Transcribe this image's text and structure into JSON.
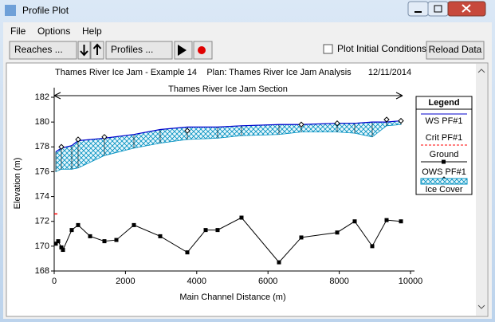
{
  "window": {
    "title": "Profile Plot"
  },
  "menu": [
    "File",
    "Options",
    "Help"
  ],
  "toolbar": {
    "reaches": "Reaches ...",
    "profiles": "Profiles ...",
    "checkbox": "Plot Initial Conditions",
    "reload": "Reload Data"
  },
  "chart_data": {
    "type": "profile",
    "header": [
      "Thames River Ice Jam - Example 14",
      "Plan: Thames River Ice Jam Analysis",
      "12/11/2014"
    ],
    "title": "Thames River Ice Jam Section",
    "x_label": "Main Channel Distance (m)",
    "y_label": "Elevation (m)",
    "legend_title": "Legend",
    "xlim": [
      0,
      10000
    ],
    "xticks": [
      0,
      2000,
      4000,
      6000,
      8000,
      10000
    ],
    "ylim": [
      168,
      182
    ],
    "yticks": [
      168,
      170,
      172,
      174,
      176,
      178,
      180,
      182
    ],
    "series": [
      {
        "name": "WS PF#1",
        "color": "#0000cc",
        "x": [
          45,
          201,
          492,
          671,
          1409,
          2237,
          2975,
          3736,
          4586,
          5257,
          6309,
          6935,
          7942,
          8434,
          8926,
          9329,
          9732
        ],
        "values": [
          177.6,
          177.9,
          178.1,
          178.5,
          178.7,
          179.0,
          179.4,
          179.6,
          179.6,
          179.7,
          179.8,
          179.8,
          179.9,
          179.9,
          180.0,
          180.0,
          180.1
        ]
      },
      {
        "name": "Crit PF#1",
        "color": "#ff0000",
        "x": [
          0
        ],
        "values": [
          172.6
        ]
      },
      {
        "name": "Ground",
        "color": "#000000",
        "x": [
          45,
          112,
          201,
          246,
          492,
          671,
          1007,
          1409,
          1745,
          2237,
          2975,
          3736,
          4251,
          4586,
          5257,
          6309,
          6935,
          7942,
          8434,
          8926,
          9329,
          9732
        ],
        "values": [
          170.2,
          170.4,
          169.9,
          169.7,
          171.3,
          171.7,
          170.8,
          170.4,
          170.5,
          171.7,
          170.8,
          169.5,
          171.3,
          171.3,
          172.3,
          168.7,
          170.7,
          171.1,
          172.0,
          170.0,
          172.1,
          172.0
        ]
      },
      {
        "name": "OWS PF#1",
        "color": "#000000",
        "x": [
          201,
          671,
          1409,
          3736,
          6935,
          7942,
          9329,
          9732
        ],
        "values": [
          178.0,
          178.6,
          178.8,
          179.3,
          179.8,
          179.9,
          180.2,
          180.1
        ]
      },
      {
        "name": "Ice Cover",
        "color": "#0090c0",
        "x": [
          45,
          201,
          492,
          671,
          1409,
          2237,
          2975,
          3736,
          4586,
          5257,
          6309,
          6935,
          7942,
          8434,
          8926,
          9329,
          9732
        ],
        "values": [
          176.0,
          176.2,
          176.2,
          176.3,
          177.3,
          177.9,
          178.3,
          178.6,
          178.7,
          178.9,
          179.0,
          179.2,
          179.2,
          179.1,
          178.8,
          179.7,
          179.8
        ]
      }
    ]
  }
}
